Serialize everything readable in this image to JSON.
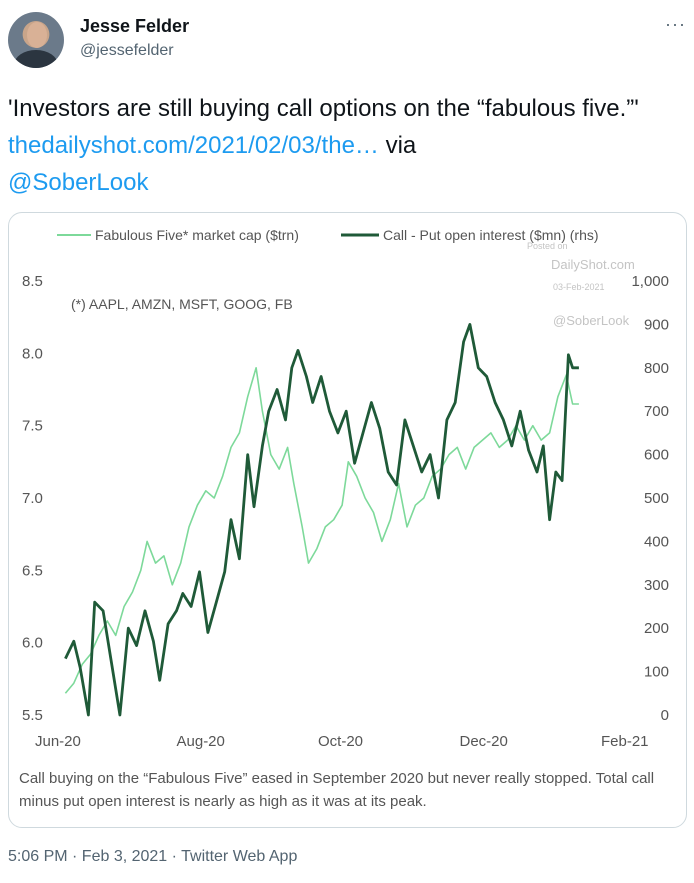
{
  "author": {
    "name": "Jesse Felder",
    "handle": "@jessefelder"
  },
  "menu_icon": "more-dots-icon",
  "tweet": {
    "text_main": "'Investors are still buying call options on the “fabulous five.”' ",
    "link": "thedailyshot.com/2021/02/03/the…",
    "text_via": " via",
    "mention": "@SoberLook"
  },
  "chart_data": {
    "type": "line",
    "legend": [
      "Fabulous Five* market cap ($trn)",
      "Call - Put open interest ($mn) (rhs)"
    ],
    "annotation": "(*) AAPL, AMZN, MSFT, GOOG, FB",
    "watermark": [
      "Posted on",
      "DailyShot.com",
      "03-Feb-2021",
      "@SoberLook"
    ],
    "x_ticks": [
      "Jun-20",
      "Aug-20",
      "Oct-20",
      "Dec-20",
      "Feb-21"
    ],
    "y_left_ticks": [
      "8.5",
      "8.0",
      "7.5",
      "7.0",
      "6.5",
      "6.0",
      "5.5"
    ],
    "y_right_ticks": [
      "1,000",
      "900",
      "800",
      "700",
      "600",
      "500",
      "400",
      "300",
      "200",
      "100",
      "0"
    ],
    "ylim_left": [
      5.5,
      8.5
    ],
    "ylim_right": [
      0,
      1000
    ],
    "x_range": [
      "2020-05-28",
      "2021-02-02"
    ],
    "series": [
      {
        "name": "Fabulous Five* market cap ($trn)",
        "axis": "left",
        "color": "#7dd99a",
        "points": [
          [
            "2020-06-01",
            5.65
          ],
          [
            "2020-06-05",
            5.72
          ],
          [
            "2020-06-09",
            5.85
          ],
          [
            "2020-06-13",
            5.92
          ],
          [
            "2020-06-17",
            6.05
          ],
          [
            "2020-06-21",
            6.15
          ],
          [
            "2020-06-25",
            6.05
          ],
          [
            "2020-06-29",
            6.25
          ],
          [
            "2020-07-03",
            6.35
          ],
          [
            "2020-07-07",
            6.5
          ],
          [
            "2020-07-10",
            6.7
          ],
          [
            "2020-07-14",
            6.55
          ],
          [
            "2020-07-18",
            6.6
          ],
          [
            "2020-07-22",
            6.4
          ],
          [
            "2020-07-26",
            6.55
          ],
          [
            "2020-07-30",
            6.8
          ],
          [
            "2020-08-03",
            6.95
          ],
          [
            "2020-08-07",
            7.05
          ],
          [
            "2020-08-11",
            7.0
          ],
          [
            "2020-08-15",
            7.15
          ],
          [
            "2020-08-19",
            7.35
          ],
          [
            "2020-08-23",
            7.45
          ],
          [
            "2020-08-27",
            7.7
          ],
          [
            "2020-08-31",
            7.9
          ],
          [
            "2020-09-03",
            7.6
          ],
          [
            "2020-09-07",
            7.3
          ],
          [
            "2020-09-11",
            7.2
          ],
          [
            "2020-09-15",
            7.35
          ],
          [
            "2020-09-18",
            7.1
          ],
          [
            "2020-09-22",
            6.8
          ],
          [
            "2020-09-25",
            6.55
          ],
          [
            "2020-09-29",
            6.65
          ],
          [
            "2020-10-03",
            6.8
          ],
          [
            "2020-10-07",
            6.85
          ],
          [
            "2020-10-11",
            6.95
          ],
          [
            "2020-10-14",
            7.25
          ],
          [
            "2020-10-18",
            7.15
          ],
          [
            "2020-10-22",
            7.0
          ],
          [
            "2020-10-26",
            6.9
          ],
          [
            "2020-10-30",
            6.7
          ],
          [
            "2020-11-03",
            6.85
          ],
          [
            "2020-11-07",
            7.1
          ],
          [
            "2020-11-11",
            6.8
          ],
          [
            "2020-11-15",
            6.95
          ],
          [
            "2020-11-19",
            7.0
          ],
          [
            "2020-11-23",
            7.15
          ],
          [
            "2020-11-27",
            7.2
          ],
          [
            "2020-12-01",
            7.3
          ],
          [
            "2020-12-05",
            7.35
          ],
          [
            "2020-12-09",
            7.2
          ],
          [
            "2020-12-13",
            7.35
          ],
          [
            "2020-12-17",
            7.4
          ],
          [
            "2020-12-21",
            7.45
          ],
          [
            "2020-12-25",
            7.35
          ],
          [
            "2020-12-29",
            7.4
          ],
          [
            "2021-01-02",
            7.5
          ],
          [
            "2021-01-06",
            7.4
          ],
          [
            "2021-01-10",
            7.5
          ],
          [
            "2021-01-14",
            7.4
          ],
          [
            "2021-01-18",
            7.45
          ],
          [
            "2021-01-22",
            7.7
          ],
          [
            "2021-01-26",
            7.85
          ],
          [
            "2021-01-29",
            7.65
          ],
          [
            "2021-02-01",
            7.65
          ]
        ]
      },
      {
        "name": "Call - Put open interest ($mn) (rhs)",
        "axis": "right",
        "color": "#1f5a38",
        "points": [
          [
            "2020-06-01",
            130
          ],
          [
            "2020-06-05",
            170
          ],
          [
            "2020-06-08",
            110
          ],
          [
            "2020-06-12",
            0
          ],
          [
            "2020-06-15",
            260
          ],
          [
            "2020-06-19",
            240
          ],
          [
            "2020-06-23",
            120
          ],
          [
            "2020-06-27",
            0
          ],
          [
            "2020-07-01",
            200
          ],
          [
            "2020-07-05",
            160
          ],
          [
            "2020-07-09",
            240
          ],
          [
            "2020-07-13",
            170
          ],
          [
            "2020-07-16",
            80
          ],
          [
            "2020-07-20",
            210
          ],
          [
            "2020-07-24",
            240
          ],
          [
            "2020-07-27",
            280
          ],
          [
            "2020-07-31",
            250
          ],
          [
            "2020-08-04",
            330
          ],
          [
            "2020-08-08",
            190
          ],
          [
            "2020-08-12",
            260
          ],
          [
            "2020-08-16",
            330
          ],
          [
            "2020-08-19",
            450
          ],
          [
            "2020-08-23",
            360
          ],
          [
            "2020-08-27",
            600
          ],
          [
            "2020-08-30",
            480
          ],
          [
            "2020-09-03",
            620
          ],
          [
            "2020-09-06",
            700
          ],
          [
            "2020-09-10",
            750
          ],
          [
            "2020-09-14",
            680
          ],
          [
            "2020-09-17",
            800
          ],
          [
            "2020-09-20",
            840
          ],
          [
            "2020-09-24",
            780
          ],
          [
            "2020-09-27",
            720
          ],
          [
            "2020-10-01",
            780
          ],
          [
            "2020-10-05",
            700
          ],
          [
            "2020-10-09",
            650
          ],
          [
            "2020-10-13",
            700
          ],
          [
            "2020-10-17",
            580
          ],
          [
            "2020-10-21",
            650
          ],
          [
            "2020-10-25",
            720
          ],
          [
            "2020-10-29",
            660
          ],
          [
            "2020-11-02",
            560
          ],
          [
            "2020-11-06",
            530
          ],
          [
            "2020-11-10",
            680
          ],
          [
            "2020-11-14",
            620
          ],
          [
            "2020-11-18",
            560
          ],
          [
            "2020-11-22",
            600
          ],
          [
            "2020-11-26",
            500
          ],
          [
            "2020-11-30",
            680
          ],
          [
            "2020-12-04",
            720
          ],
          [
            "2020-12-08",
            860
          ],
          [
            "2020-12-11",
            900
          ],
          [
            "2020-12-15",
            800
          ],
          [
            "2020-12-19",
            780
          ],
          [
            "2020-12-23",
            720
          ],
          [
            "2020-12-27",
            680
          ],
          [
            "2020-12-31",
            620
          ],
          [
            "2021-01-04",
            700
          ],
          [
            "2021-01-08",
            610
          ],
          [
            "2021-01-12",
            560
          ],
          [
            "2021-01-15",
            620
          ],
          [
            "2021-01-18",
            450
          ],
          [
            "2021-01-21",
            560
          ],
          [
            "2021-01-24",
            540
          ],
          [
            "2021-01-27",
            830
          ],
          [
            "2021-01-29",
            800
          ],
          [
            "2021-02-01",
            800
          ]
        ]
      }
    ],
    "caption": "Call buying on the “Fabulous Five” eased in September 2020 but never really stopped. Total call minus put open interest is nearly as high as it was at its peak."
  },
  "footer": {
    "text": "5:06 PM · Feb 3, 2021 · Twitter Web App"
  }
}
